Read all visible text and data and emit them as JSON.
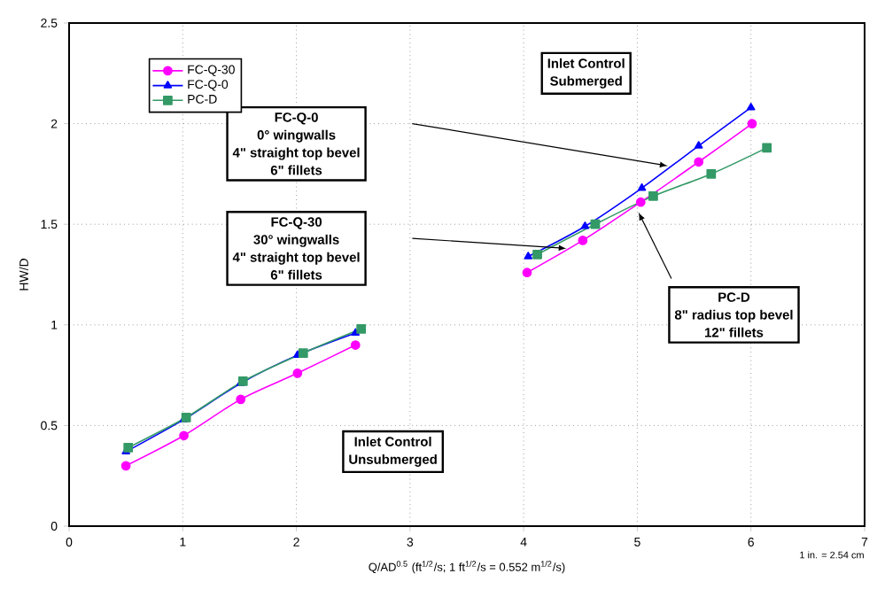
{
  "chart_data": {
    "type": "line",
    "xlabel": "Q/AD$^{0.5}$ (ft$^{1/2}$/s; 1 ft$^{1/2}$/s = 0.552 m$^{1/2}$/s)",
    "ylabel": "HW/D",
    "xlim": [
      0,
      7
    ],
    "ylim": [
      0,
      2.5
    ],
    "xticks": [
      0,
      1,
      2,
      3,
      4,
      5,
      6,
      7
    ],
    "yticks": [
      0,
      0.5,
      1,
      1.5,
      2,
      2.5
    ],
    "grid": true,
    "legend": "top left",
    "line_style": "solid",
    "series": [
      {
        "name": "FC-Q-30",
        "color": "#ff00ff",
        "marker": "circle",
        "x": [
          0.5,
          1.01,
          1.51,
          2.01,
          2.52,
          3.3,
          4.03,
          4.52,
          5.03,
          5.54,
          6.01
        ],
        "values": [
          0.3,
          0.45,
          0.63,
          0.76,
          0.9,
          null,
          1.26,
          1.42,
          1.61,
          1.81,
          2.0
        ]
      },
      {
        "name": "FC-Q-0",
        "color": "#0000ff",
        "marker": "triangle",
        "x": [
          0.5,
          1.01,
          1.51,
          2.01,
          2.52,
          3.3,
          4.04,
          4.54,
          5.04,
          5.54,
          6.0
        ],
        "values": [
          0.37,
          0.53,
          0.71,
          0.85,
          0.96,
          null,
          1.34,
          1.49,
          1.68,
          1.89,
          2.08
        ]
      },
      {
        "name": "PC-D",
        "color": "#339966",
        "marker": "square",
        "x": [
          0.52,
          1.03,
          1.53,
          2.06,
          2.57,
          3.3,
          4.12,
          4.63,
          5.14,
          5.65,
          6.14
        ],
        "values": [
          0.39,
          0.54,
          0.72,
          0.86,
          0.98,
          null,
          1.35,
          1.5,
          1.64,
          1.75,
          1.88
        ]
      }
    ],
    "annotations": [
      "Inlet Control",
      "Submerged",
      "FC-Q-0",
      "0° wingwalls",
      "4\" straight top bevel",
      "6\" fillets",
      "FC-Q-30",
      "30° wingwalls",
      "4\" straight top bevel",
      "6\" fillets",
      "PC-D",
      "8\" radius top bevel",
      "12\" fillets",
      "Inlet Control",
      "Unsubmerged",
      "1 in. = 2.54 cm"
    ]
  }
}
